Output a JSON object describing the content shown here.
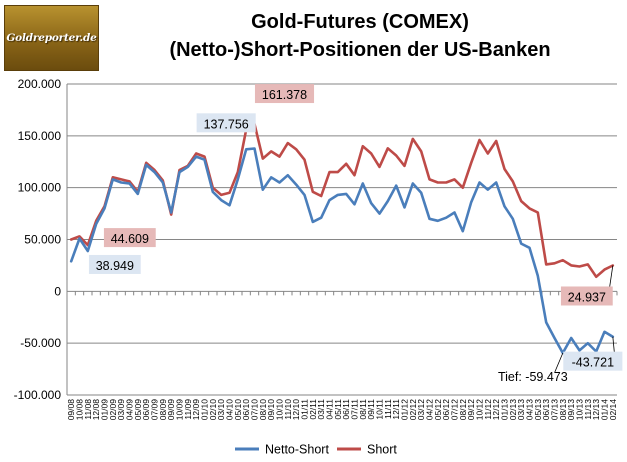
{
  "logo": {
    "text": "Goldreporter.de"
  },
  "chart_data": {
    "type": "line",
    "title": [
      "Gold-Futures (COMEX)",
      "(Netto-)Short-Positionen der US-Banken"
    ],
    "xlabel": "",
    "ylabel": "",
    "ylim": [
      -100000,
      200000
    ],
    "yticks": [
      -100000,
      -50000,
      0,
      50000,
      100000,
      150000,
      200000
    ],
    "ytick_labels": [
      "-100.000",
      "-50.000",
      "0",
      "50.000",
      "100.000",
      "150.000",
      "200.000"
    ],
    "grid": true,
    "legend": "bottom",
    "x_tick_labels": [
      "09/08",
      "10/08",
      "11/08",
      "12/08",
      "01/09",
      "02/09",
      "03/09",
      "04/09",
      "05/09",
      "06/09",
      "07/09",
      "08/09",
      "09/09",
      "10/09",
      "11/09",
      "12/09",
      "01/10",
      "02/10",
      "03/10",
      "04/10",
      "05/10",
      "06/10",
      "07/10",
      "08/10",
      "09/10",
      "10/10",
      "11/10",
      "12/10",
      "01/11",
      "02/11",
      "03/11",
      "04/11",
      "05/11",
      "06/11",
      "07/11",
      "08/11",
      "09/11",
      "10/11",
      "11/11",
      "12/11",
      "01/12",
      "02/12",
      "03/12",
      "04/12",
      "05/12",
      "06/12",
      "07/12",
      "08/12",
      "09/12",
      "10/12",
      "11/12",
      "12/12",
      "01/13",
      "02/13",
      "03/13",
      "04/13",
      "05/13",
      "06/13",
      "07/13",
      "08/13",
      "09/13",
      "10/13",
      "11/13",
      "12/13",
      "01/14",
      "02/14"
    ],
    "series": [
      {
        "name": "Netto-Short",
        "color": "#4a7ebb",
        "values": [
          29000,
          51000,
          38949,
          65000,
          80000,
          108000,
          105000,
          104000,
          94000,
          122000,
          115000,
          105000,
          76000,
          115000,
          120000,
          130000,
          127000,
          96000,
          88000,
          83000,
          108000,
          137000,
          137756,
          98000,
          110000,
          105000,
          112000,
          103000,
          93000,
          67000,
          71000,
          88000,
          93000,
          94000,
          84000,
          104000,
          85000,
          75000,
          87000,
          102000,
          81000,
          104000,
          95000,
          70000,
          68000,
          71000,
          76000,
          58000,
          86000,
          105000,
          98000,
          105000,
          82000,
          70000,
          46000,
          42000,
          15000,
          -30000,
          -45000,
          -59473,
          -45000,
          -57000,
          -50000,
          -58000,
          -39000,
          -43721
        ]
      },
      {
        "name": "Short",
        "color": "#be4b48",
        "values": [
          50000,
          53000,
          44609,
          68000,
          82000,
          110000,
          108000,
          106000,
          96000,
          124000,
          117000,
          107000,
          74000,
          117000,
          121000,
          133000,
          130000,
          100000,
          93000,
          95000,
          115000,
          156000,
          161378,
          128000,
          135000,
          130000,
          143000,
          137000,
          127000,
          96000,
          92000,
          115000,
          115000,
          123000,
          112000,
          140000,
          133000,
          120000,
          138000,
          131000,
          121000,
          147000,
          135000,
          108000,
          105000,
          105000,
          108000,
          100000,
          124000,
          146000,
          133000,
          145000,
          118000,
          106000,
          87000,
          80000,
          76000,
          26000,
          27000,
          30000,
          25000,
          24000,
          26000,
          14000,
          21000,
          24937
        ]
      }
    ],
    "annotations": [
      {
        "text": "161.378",
        "series": 1,
        "index": 22,
        "bg": "#e6b9b8",
        "dx": 30,
        "dy": -29
      },
      {
        "text": "137.756",
        "series": 0,
        "index": 21,
        "bg": "#dce6f2",
        "dx": -20,
        "dy": -25
      },
      {
        "text": "44.609",
        "series": 1,
        "index": 2,
        "bg": "#e6b9b8",
        "dx": 42,
        "dy": -6
      },
      {
        "text": "38.949",
        "series": 0,
        "index": 2,
        "bg": "#dce6f2",
        "dx": 27,
        "dy": 15
      },
      {
        "text": "24.937",
        "series": 1,
        "index": 65,
        "bg": "#e6b9b8",
        "dx": -26,
        "dy": 32,
        "leader": true
      },
      {
        "text": "-43.721",
        "series": 0,
        "index": 65,
        "bg": "#dce6f2",
        "dx": -20,
        "dy": 26,
        "leader": true
      },
      {
        "text": "Tief: -59.473",
        "series": 0,
        "index": 59,
        "bg": "none",
        "dx": -30,
        "dy": 24,
        "leader": true
      }
    ]
  }
}
